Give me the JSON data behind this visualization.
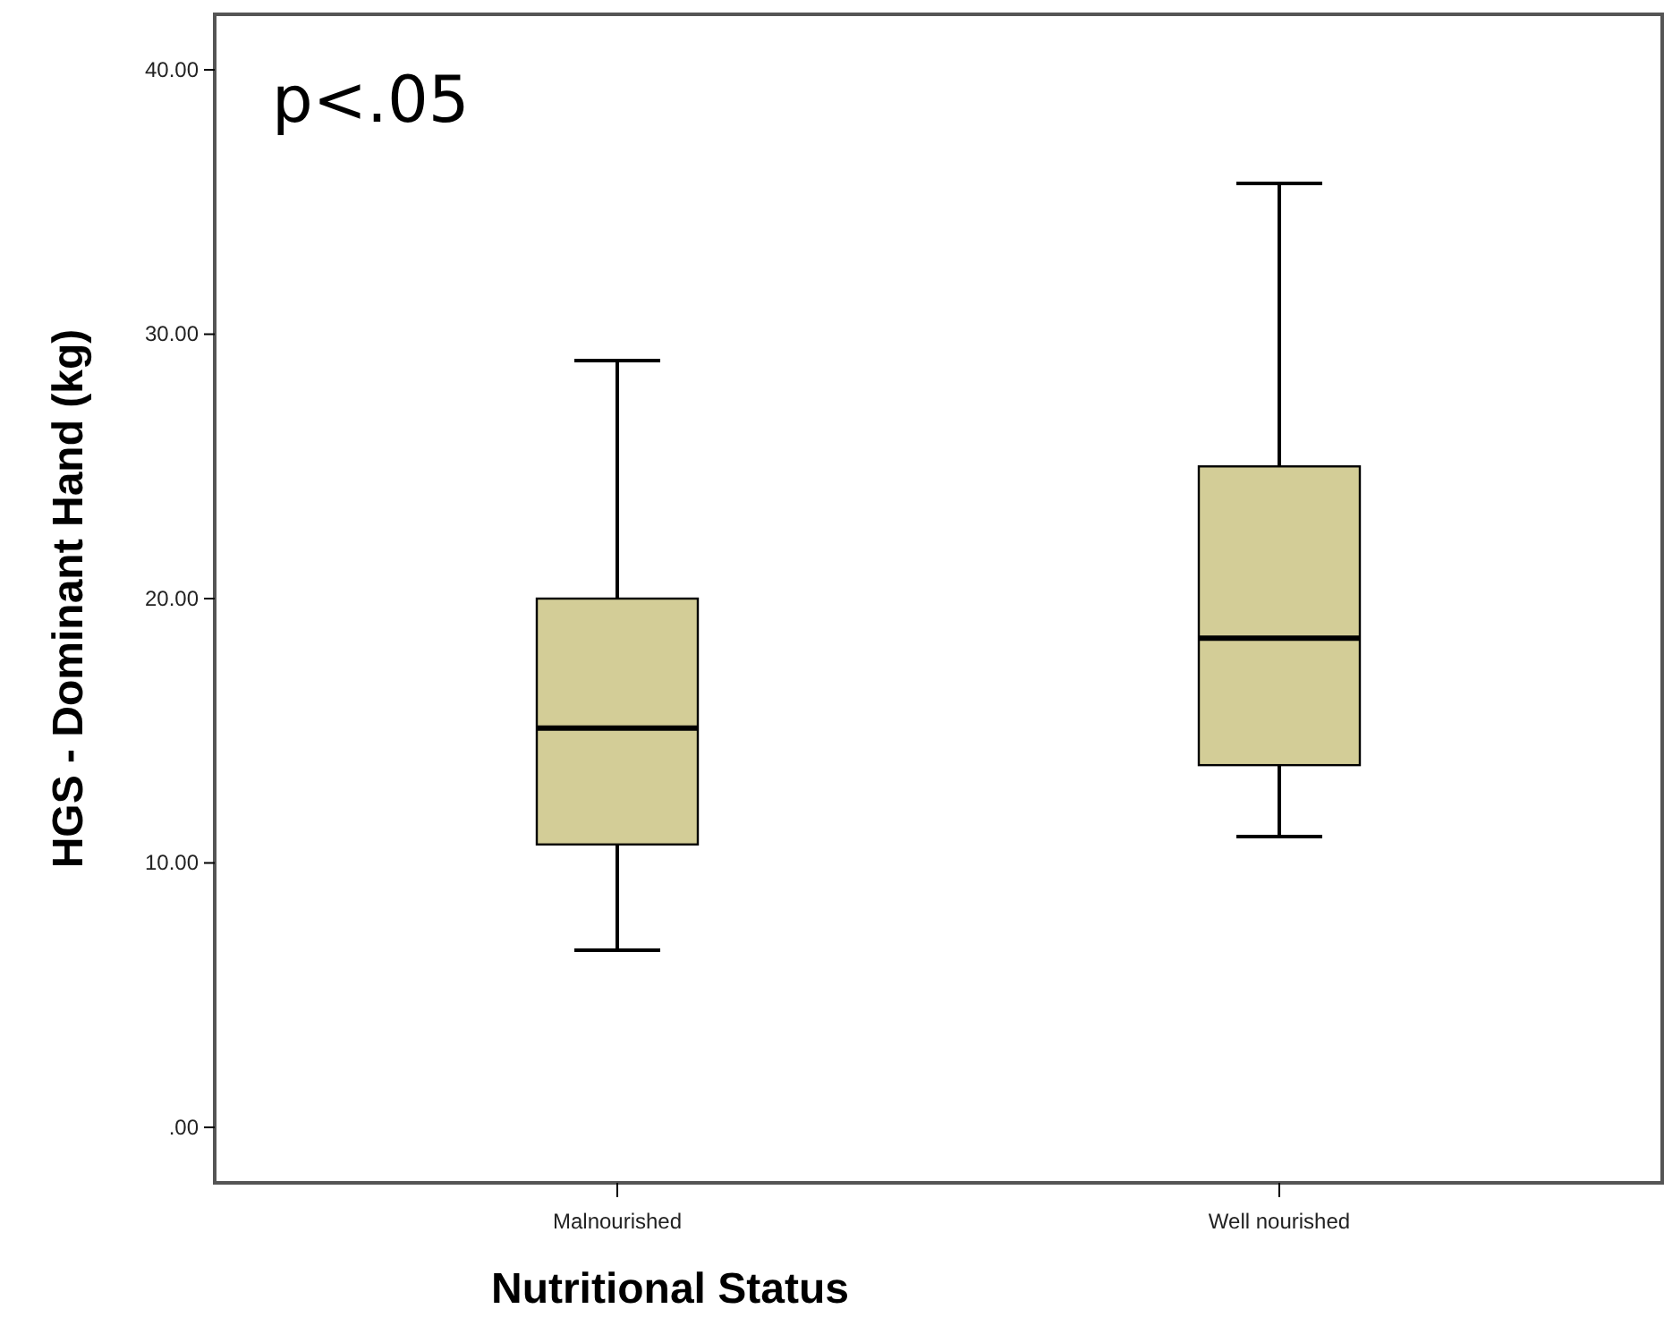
{
  "chart_data": {
    "type": "box",
    "xlabel": "Nutritional Status",
    "ylabel": "HGS - Dominant Hand (kg)",
    "annotations": [
      "p<.05"
    ],
    "categories": [
      "Malnourished",
      "Well nourished"
    ],
    "boxes": [
      {
        "low": 6.7,
        "q1": 10.7,
        "median": 15.1,
        "q3": 20,
        "high": 29
      },
      {
        "low": 11,
        "q1": 13.7,
        "median": 18.5,
        "q3": 25,
        "high": 35.7
      }
    ],
    "color": "#d3cd97",
    "ylim": [
      -2.1,
      42.1
    ],
    "yticks": [
      {
        "value": 0,
        "label": ".00"
      },
      {
        "value": 10,
        "label": "10.00"
      },
      {
        "value": 20,
        "label": "20.00"
      },
      {
        "value": 30,
        "label": "30.00"
      },
      {
        "value": 40,
        "label": "40.00"
      }
    ],
    "grid": false
  }
}
